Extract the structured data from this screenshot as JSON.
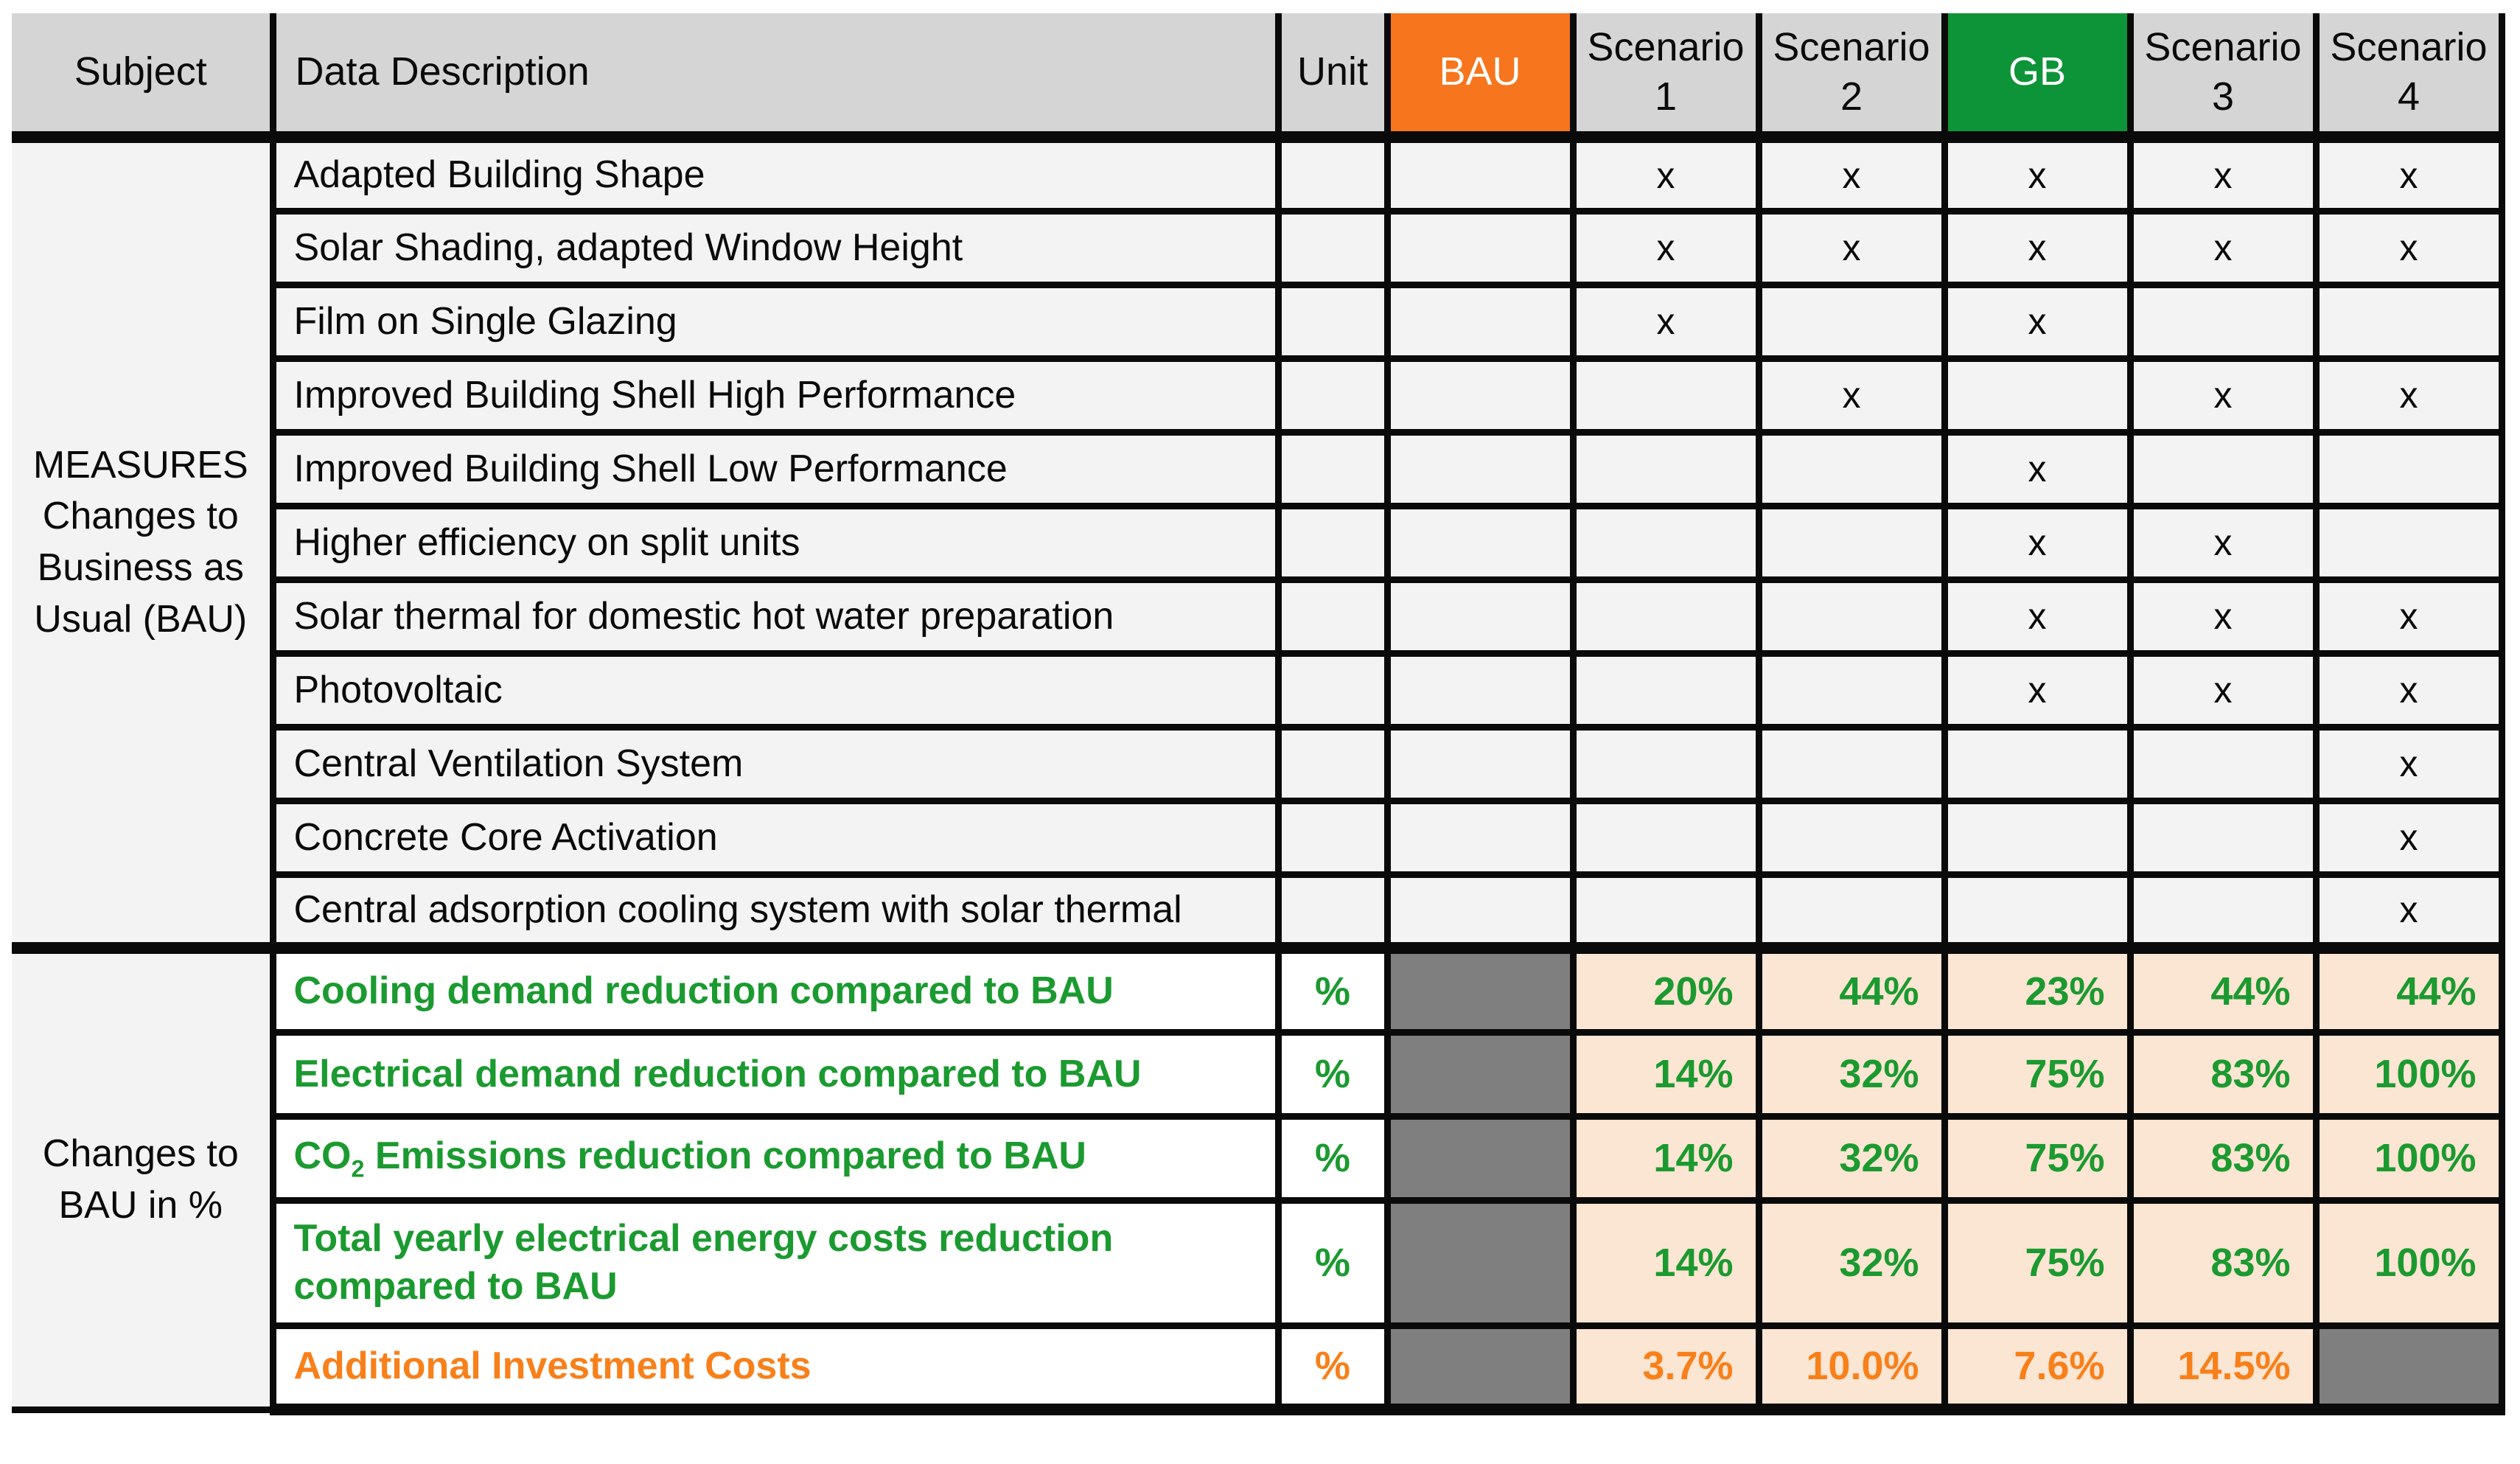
{
  "colors": {
    "bau_header_orange": "#F7751C",
    "gb_header_green": "#0E9438",
    "header_gray": "#D5D5D5",
    "row_light_gray": "#F3F3F3",
    "value_cell_peach": "#FBE5D3",
    "blocked_cell_gray": "#7F7F7F",
    "value_text_green": "#1B9A30",
    "value_text_orange": "#F8801A",
    "border_black": "#0A0A0A"
  },
  "header": {
    "subject": "Subject",
    "data_description": "Data Description",
    "unit": "Unit",
    "bau": "BAU",
    "scenario1": "Scenario 1",
    "scenario2": "Scenario 2",
    "gb": "GB",
    "scenario3": "Scenario 3",
    "scenario4": "Scenario 4"
  },
  "measures": {
    "subject_lines": [
      "MEASURES",
      "Changes to",
      "Business as",
      "Usual (BAU)"
    ],
    "rows": [
      {
        "desc": "Adapted Building Shape",
        "marks": [
          "",
          "x",
          "x",
          "x",
          "x",
          "x"
        ]
      },
      {
        "desc": "Solar Shading, adapted Window Height",
        "marks": [
          "",
          "x",
          "x",
          "x",
          "x",
          "x"
        ]
      },
      {
        "desc": "Film on Single Glazing",
        "marks": [
          "",
          "x",
          "",
          "x",
          "",
          ""
        ]
      },
      {
        "desc": "Improved Building Shell High Performance",
        "marks": [
          "",
          "",
          "x",
          "",
          "x",
          "x"
        ]
      },
      {
        "desc": "Improved Building Shell Low Performance",
        "marks": [
          "",
          "",
          "",
          "x",
          "",
          ""
        ]
      },
      {
        "desc": "Higher efficiency on split units",
        "marks": [
          "",
          "",
          "",
          "x",
          "x",
          ""
        ]
      },
      {
        "desc": "Solar thermal for domestic hot water preparation",
        "marks": [
          "",
          "",
          "",
          "x",
          "x",
          "x"
        ]
      },
      {
        "desc": "Photovoltaic",
        "marks": [
          "",
          "",
          "",
          "x",
          "x",
          "x"
        ]
      },
      {
        "desc": "Central Ventilation System",
        "marks": [
          "",
          "",
          "",
          "",
          "",
          "x"
        ]
      },
      {
        "desc": "Concrete Core Activation",
        "marks": [
          "",
          "",
          "",
          "",
          "",
          "x"
        ]
      },
      {
        "desc": "Central adsorption cooling system with solar thermal",
        "marks": [
          "",
          "",
          "",
          "",
          "",
          "x"
        ]
      }
    ]
  },
  "changes": {
    "subject_lines": [
      "Changes to",
      "BAU in %"
    ],
    "rows": [
      {
        "desc": "Cooling demand reduction compared to BAU",
        "unit": "%",
        "values": [
          "",
          "20%",
          "44%",
          "23%",
          "44%",
          "44%"
        ]
      },
      {
        "desc": "Electrical demand reduction compared to BAU",
        "unit": "%",
        "values": [
          "",
          "14%",
          "32%",
          "75%",
          "83%",
          "100%"
        ]
      },
      {
        "desc_prefix": "CO",
        "desc_sub": "2",
        "desc_rest": " Emissions reduction compared to BAU",
        "unit": "%",
        "values": [
          "",
          "14%",
          "32%",
          "75%",
          "83%",
          "100%"
        ]
      },
      {
        "desc": "Total yearly electrical energy costs reduction compared to BAU",
        "unit": "%",
        "values": [
          "",
          "14%",
          "32%",
          "75%",
          "83%",
          "100%"
        ]
      },
      {
        "desc": "Additional Investment Costs",
        "unit": "%",
        "values": [
          "",
          "3.7%",
          "10.0%",
          "7.6%",
          "14.5%",
          ""
        ]
      }
    ]
  }
}
